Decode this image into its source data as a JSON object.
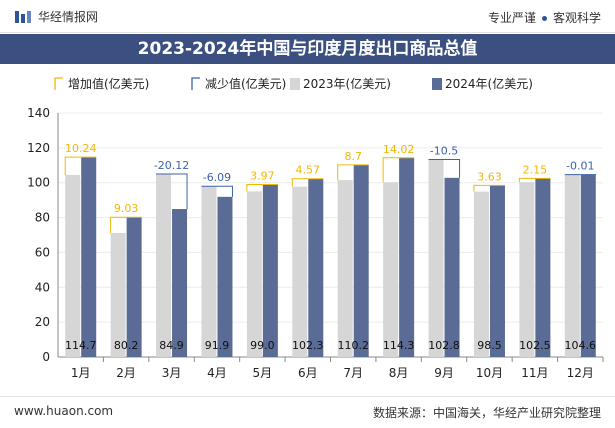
{
  "header": {
    "site_name": "华经情报网",
    "tagline_left": "专业严谨",
    "tagline_right": "客观科学"
  },
  "footer": {
    "url": "www.huaon.com",
    "source": "数据来源：中国海关，华经产业研究院整理"
  },
  "colors": {
    "series_2023": "#d6d6d6",
    "series_2024": "#5a6b95",
    "increase": "#f2b705",
    "decrease": "#3d63a8",
    "title_bg": "#3b5080"
  },
  "chart_data": {
    "type": "bar",
    "title": "2023-2024年中国与印度月度出口商品总值",
    "categories": [
      "1月",
      "2月",
      "3月",
      "4月",
      "5月",
      "6月",
      "7月",
      "8月",
      "9月",
      "10月",
      "11月",
      "12月"
    ],
    "series": [
      {
        "name": "2023年(亿美元)",
        "values": [
          104.46,
          71.17,
          105.02,
          97.99,
          95.03,
          97.73,
          101.5,
          100.28,
          113.3,
          94.87,
          100.35,
          104.61
        ]
      },
      {
        "name": "2024年(亿美元)",
        "values": [
          114.7,
          80.2,
          84.9,
          91.9,
          99.0,
          102.3,
          110.2,
          114.3,
          102.8,
          98.5,
          102.5,
          104.6
        ]
      }
    ],
    "change": {
      "values": [
        10.24,
        9.03,
        -20.12,
        -6.09,
        3.97,
        4.57,
        8.7,
        14.02,
        -10.5,
        3.63,
        2.15,
        -0.01
      ],
      "labels": [
        "10.24",
        "9.03",
        "-20.12",
        "-6.09",
        "3.97",
        "4.57",
        "8.7",
        "14.02",
        "-10.5",
        "3.63",
        "2.15",
        "-0.01"
      ]
    },
    "bar_value_labels": [
      "114.7",
      "80.2",
      "84.9",
      "91.9",
      "99.0",
      "102.3",
      "110.2",
      "114.3",
      "102.8",
      "98.5",
      "102.5",
      "104.6"
    ],
    "legend": [
      "增加值(亿美元)",
      "减少值(亿美元)",
      "2023年(亿美元)",
      "2024年(亿美元)"
    ],
    "ylim": [
      0,
      140
    ],
    "yticks": [
      0,
      20,
      40,
      60,
      80,
      100,
      120,
      140
    ],
    "xlabel": "",
    "ylabel": ""
  }
}
